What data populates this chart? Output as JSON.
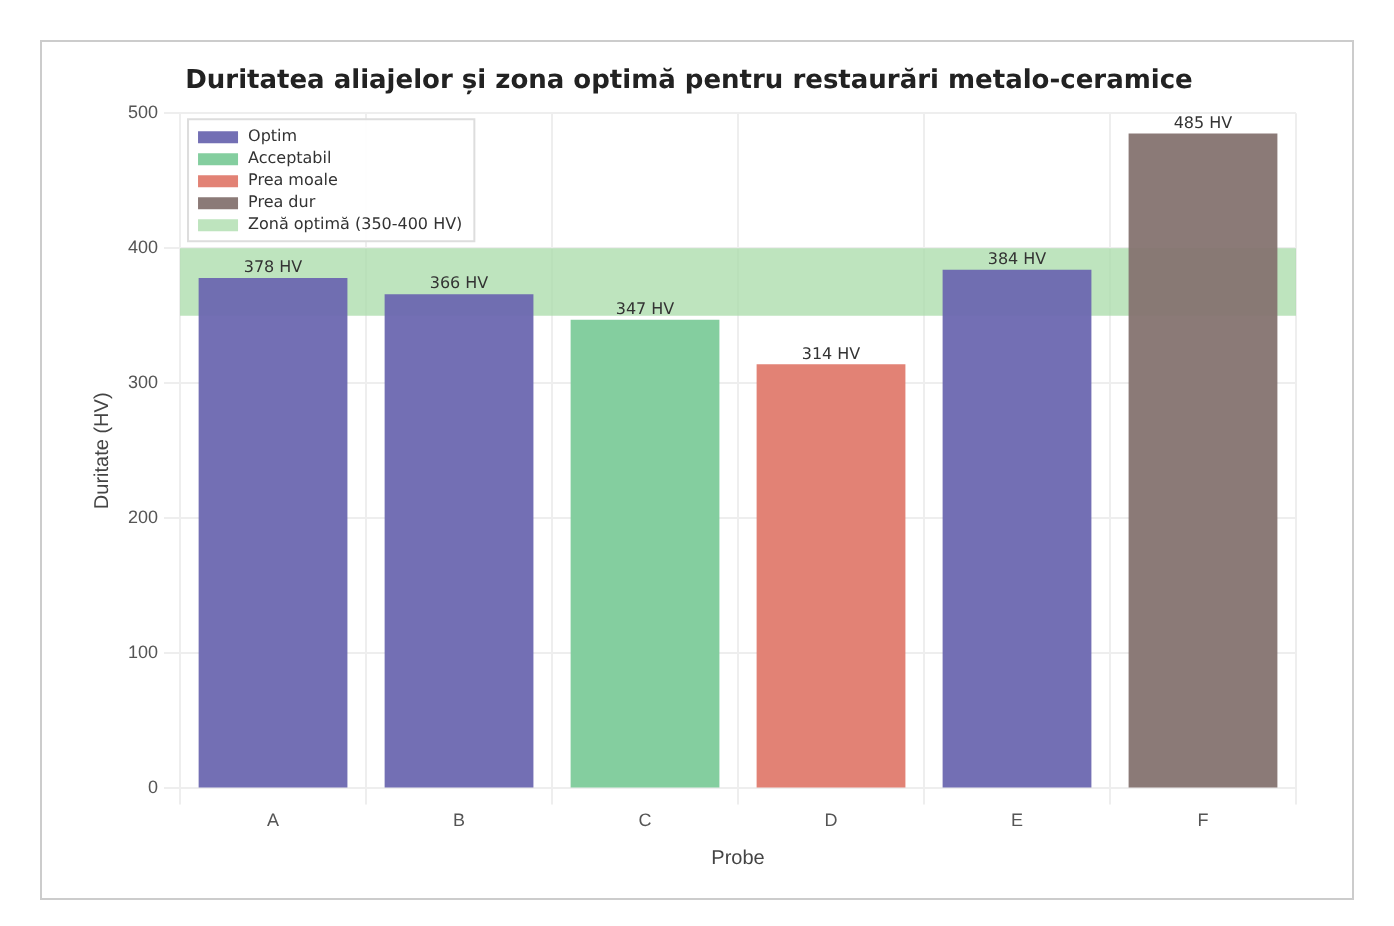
{
  "chart_data": {
    "type": "bar",
    "title": "Duritatea aliajelor și zona optimă pentru restaurări metalo-ceramice",
    "xlabel": "Probe",
    "ylabel": "Duritate (HV)",
    "categories": [
      "A",
      "B",
      "C",
      "D",
      "E",
      "F"
    ],
    "stacked": true,
    "series": [
      {
        "name": "Optim",
        "color": "#6c67b0",
        "values": [
          378,
          366,
          null,
          null,
          384,
          null
        ],
        "value_labels": [
          "378 HV",
          "366 HV",
          null,
          null,
          "384 HV",
          null
        ]
      },
      {
        "name": "Acceptabil",
        "color": "#7dcb9a",
        "values": [
          null,
          null,
          347,
          null,
          null,
          null
        ],
        "value_labels": [
          null,
          null,
          "347 HV",
          null,
          null,
          null
        ]
      },
      {
        "name": "Prea moale",
        "color": "#e07b6e",
        "values": [
          null,
          null,
          null,
          314,
          null,
          null
        ],
        "value_labels": [
          null,
          null,
          null,
          "314 HV",
          null,
          null
        ]
      },
      {
        "name": "Prea dur",
        "color": "#857370",
        "values": [
          null,
          null,
          null,
          null,
          null,
          485
        ],
        "value_labels": [
          null,
          null,
          null,
          null,
          null,
          "485 HV"
        ]
      }
    ],
    "bands": [
      {
        "axis": "y",
        "from": 350,
        "to": 400,
        "label": "Zonă optimă (350-400 HV)",
        "color": "#a8dba8"
      }
    ],
    "ylim": [
      0,
      500
    ],
    "yticks": [
      0,
      100,
      200,
      300,
      400,
      500
    ],
    "grid": true,
    "legend": "top left"
  }
}
